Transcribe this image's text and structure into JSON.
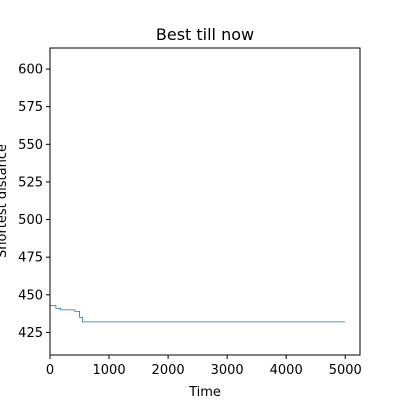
{
  "chart_data": {
    "type": "line",
    "title": "Best till now",
    "xlabel": "Time",
    "ylabel": "Shortest distance",
    "xlim": [
      0,
      5250
    ],
    "ylim": [
      410,
      614
    ],
    "x_ticks": [
      0,
      1000,
      2000,
      3000,
      4000,
      5000
    ],
    "y_ticks": [
      425,
      450,
      475,
      500,
      525,
      550,
      575,
      600
    ],
    "grid": false,
    "legend": "none",
    "line_color": "#1f77b4",
    "step": true,
    "series": [
      {
        "x": [
          0,
          100,
          180,
          420,
          500,
          550,
          5000
        ],
        "y": [
          443,
          441,
          440,
          439,
          435,
          432,
          432
        ]
      }
    ]
  }
}
